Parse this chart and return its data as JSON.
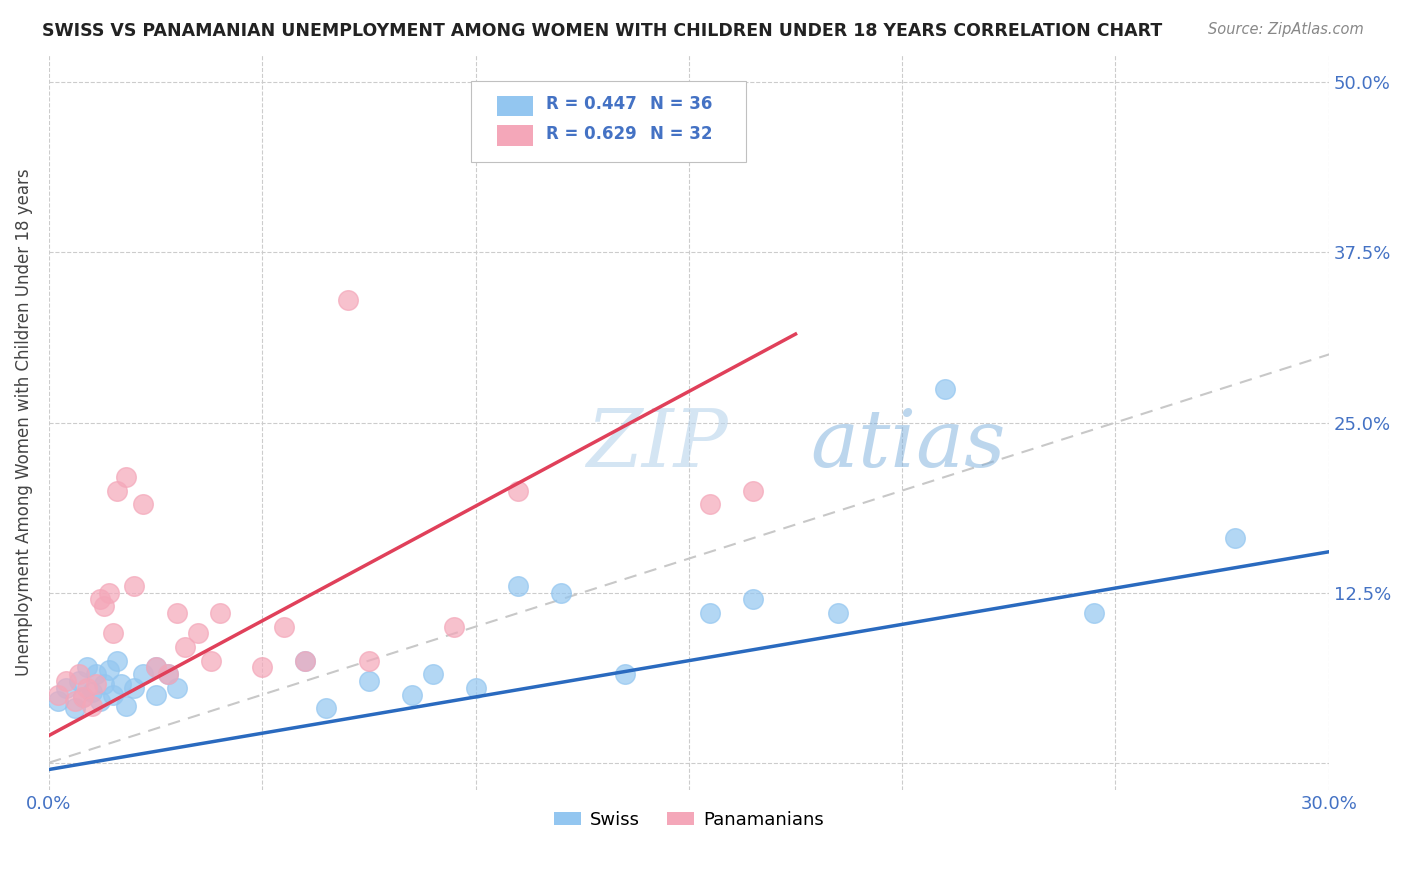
{
  "title": "SWISS VS PANAMANIAN UNEMPLOYMENT AMONG WOMEN WITH CHILDREN UNDER 18 YEARS CORRELATION CHART",
  "source": "Source: ZipAtlas.com",
  "ylabel": "Unemployment Among Women with Children Under 18 years",
  "ytick_labels": [
    "",
    "12.5%",
    "25.0%",
    "37.5%",
    "50.0%"
  ],
  "ytick_values": [
    0,
    0.125,
    0.25,
    0.375,
    0.5
  ],
  "xtick_values": [
    0.0,
    0.05,
    0.1,
    0.15,
    0.2,
    0.25,
    0.3
  ],
  "xmin": 0.0,
  "xmax": 0.3,
  "ymin": -0.02,
  "ymax": 0.52,
  "swiss_color": "#93c6f0",
  "panama_color": "#f4a7b9",
  "swiss_line_color": "#2a6abf",
  "panama_line_color": "#e0405a",
  "diagonal_color": "#c8c8c8",
  "watermark_color": "#cce0f5",
  "legend_swiss_R": "R = 0.447",
  "legend_swiss_N": "N = 36",
  "legend_panama_R": "R = 0.629",
  "legend_panama_N": "N = 32",
  "swiss_x": [
    0.002,
    0.004,
    0.006,
    0.007,
    0.008,
    0.009,
    0.01,
    0.011,
    0.012,
    0.013,
    0.014,
    0.015,
    0.016,
    0.017,
    0.018,
    0.02,
    0.022,
    0.025,
    0.025,
    0.028,
    0.03,
    0.06,
    0.065,
    0.075,
    0.085,
    0.09,
    0.1,
    0.11,
    0.12,
    0.135,
    0.155,
    0.165,
    0.185,
    0.21,
    0.245,
    0.278
  ],
  "swiss_y": [
    0.045,
    0.055,
    0.04,
    0.06,
    0.048,
    0.07,
    0.052,
    0.065,
    0.045,
    0.058,
    0.068,
    0.05,
    0.075,
    0.058,
    0.042,
    0.055,
    0.065,
    0.05,
    0.07,
    0.065,
    0.055,
    0.075,
    0.04,
    0.06,
    0.05,
    0.065,
    0.055,
    0.13,
    0.125,
    0.065,
    0.11,
    0.12,
    0.11,
    0.275,
    0.11,
    0.165
  ],
  "panama_x": [
    0.002,
    0.004,
    0.006,
    0.007,
    0.008,
    0.009,
    0.01,
    0.011,
    0.012,
    0.013,
    0.014,
    0.015,
    0.016,
    0.018,
    0.02,
    0.022,
    0.025,
    0.028,
    0.03,
    0.032,
    0.035,
    0.038,
    0.04,
    0.05,
    0.055,
    0.06,
    0.07,
    0.075,
    0.095,
    0.11,
    0.155,
    0.165
  ],
  "panama_y": [
    0.05,
    0.06,
    0.045,
    0.065,
    0.048,
    0.055,
    0.042,
    0.058,
    0.12,
    0.115,
    0.125,
    0.095,
    0.2,
    0.21,
    0.13,
    0.19,
    0.07,
    0.065,
    0.11,
    0.085,
    0.095,
    0.075,
    0.11,
    0.07,
    0.1,
    0.075,
    0.34,
    0.075,
    0.1,
    0.2,
    0.19,
    0.2
  ]
}
